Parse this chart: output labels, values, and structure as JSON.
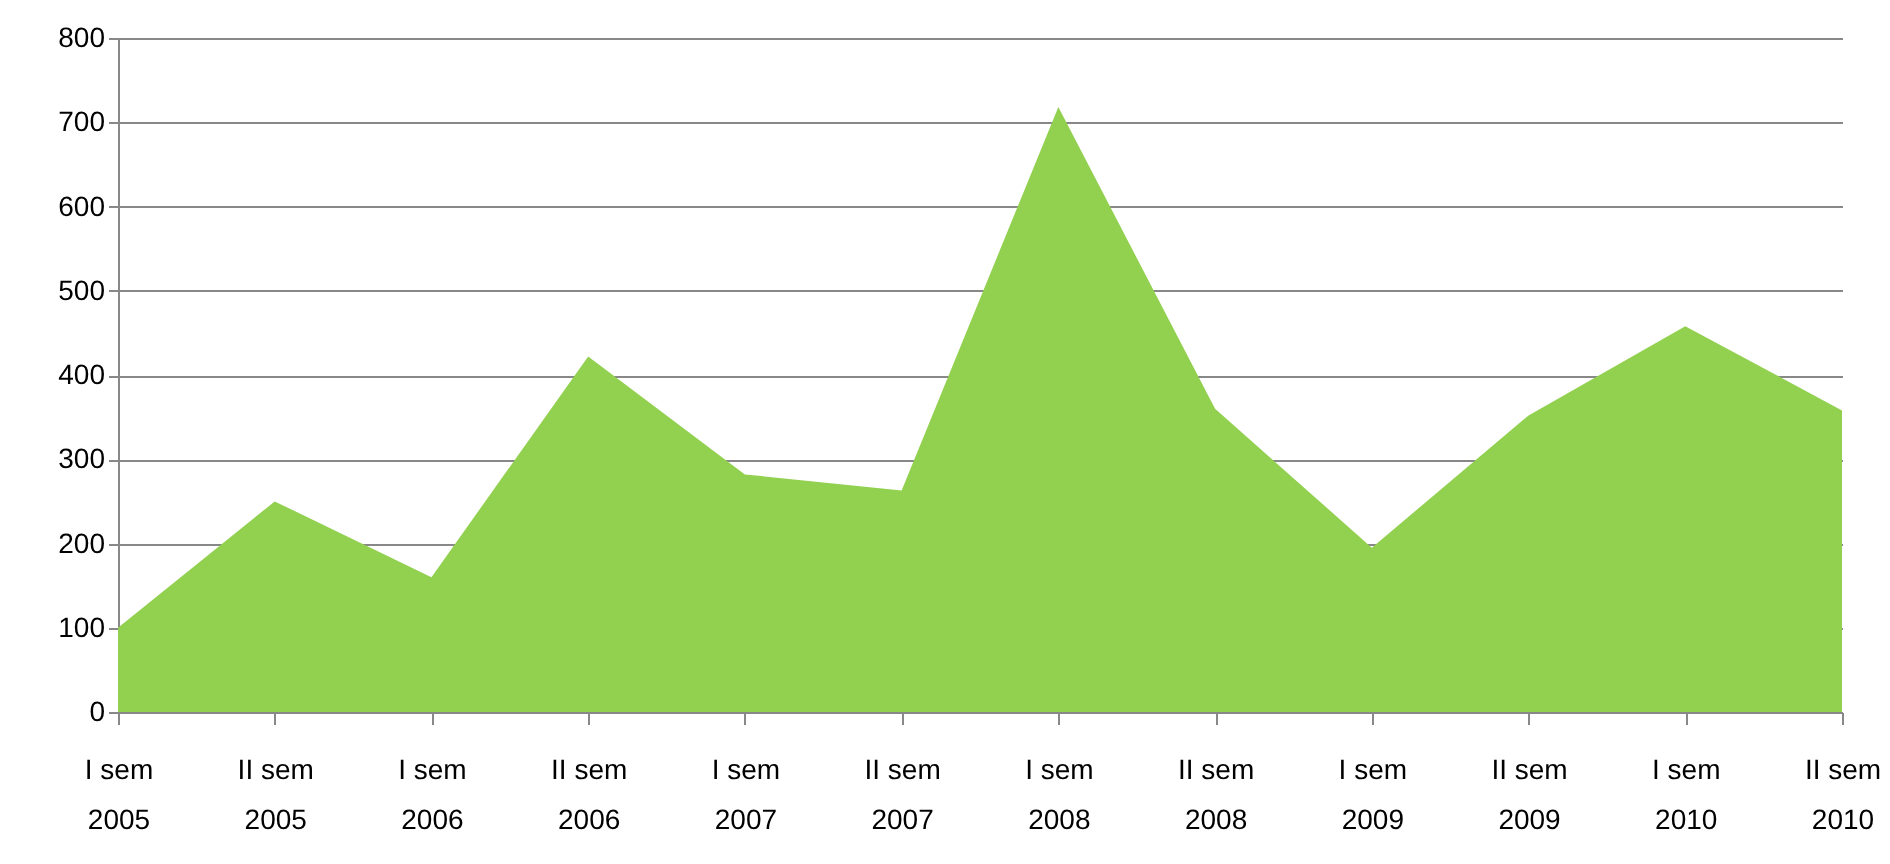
{
  "chart_data": {
    "type": "area",
    "categories": [
      "I sem\n2005",
      "II sem\n2005",
      "I sem\n2006",
      "II sem\n2006",
      "I sem\n2007",
      "II sem\n2007",
      "I sem\n2008",
      "II sem\n2008",
      "I sem\n2009",
      "II sem\n2009",
      "I sem\n2010",
      "II sem\n2010"
    ],
    "series": [
      {
        "color": "#92d050",
        "values": [
          100,
          250,
          160,
          422,
          282,
          263,
          718,
          360,
          195,
          352,
          458,
          358
        ]
      }
    ],
    "ylim": [
      0,
      800
    ],
    "yticks": [
      0,
      100,
      200,
      300,
      400,
      500,
      600,
      700,
      800
    ],
    "grid": "y"
  }
}
